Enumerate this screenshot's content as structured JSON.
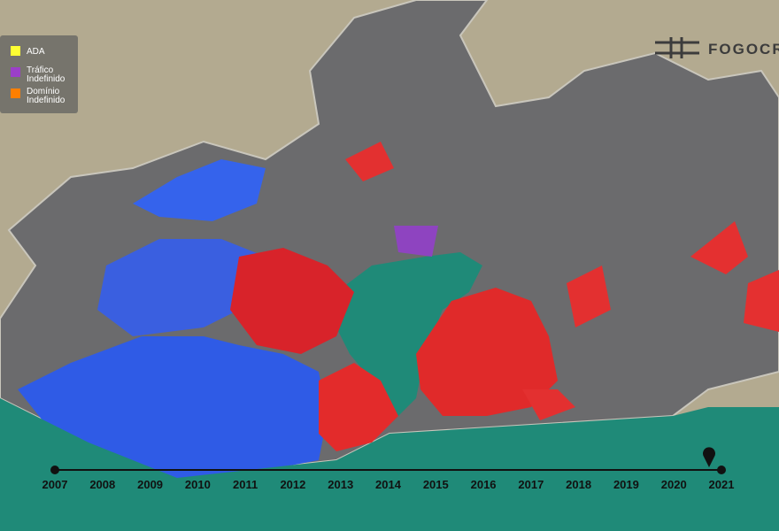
{
  "legend": [
    {
      "label": "ADA",
      "color": "#ffff33"
    },
    {
      "label": "Tráfico Indefinido",
      "color": "#9b3fc8"
    },
    {
      "label": "Domínio Indefinido",
      "color": "#ff7f00"
    }
  ],
  "logo": "FOGOCRU",
  "timeline": {
    "years": [
      "2007",
      "2008",
      "2009",
      "2010",
      "2011",
      "2012",
      "2013",
      "2014",
      "2015",
      "2016",
      "2017",
      "2018",
      "2019",
      "2020",
      "2021"
    ]
  }
}
